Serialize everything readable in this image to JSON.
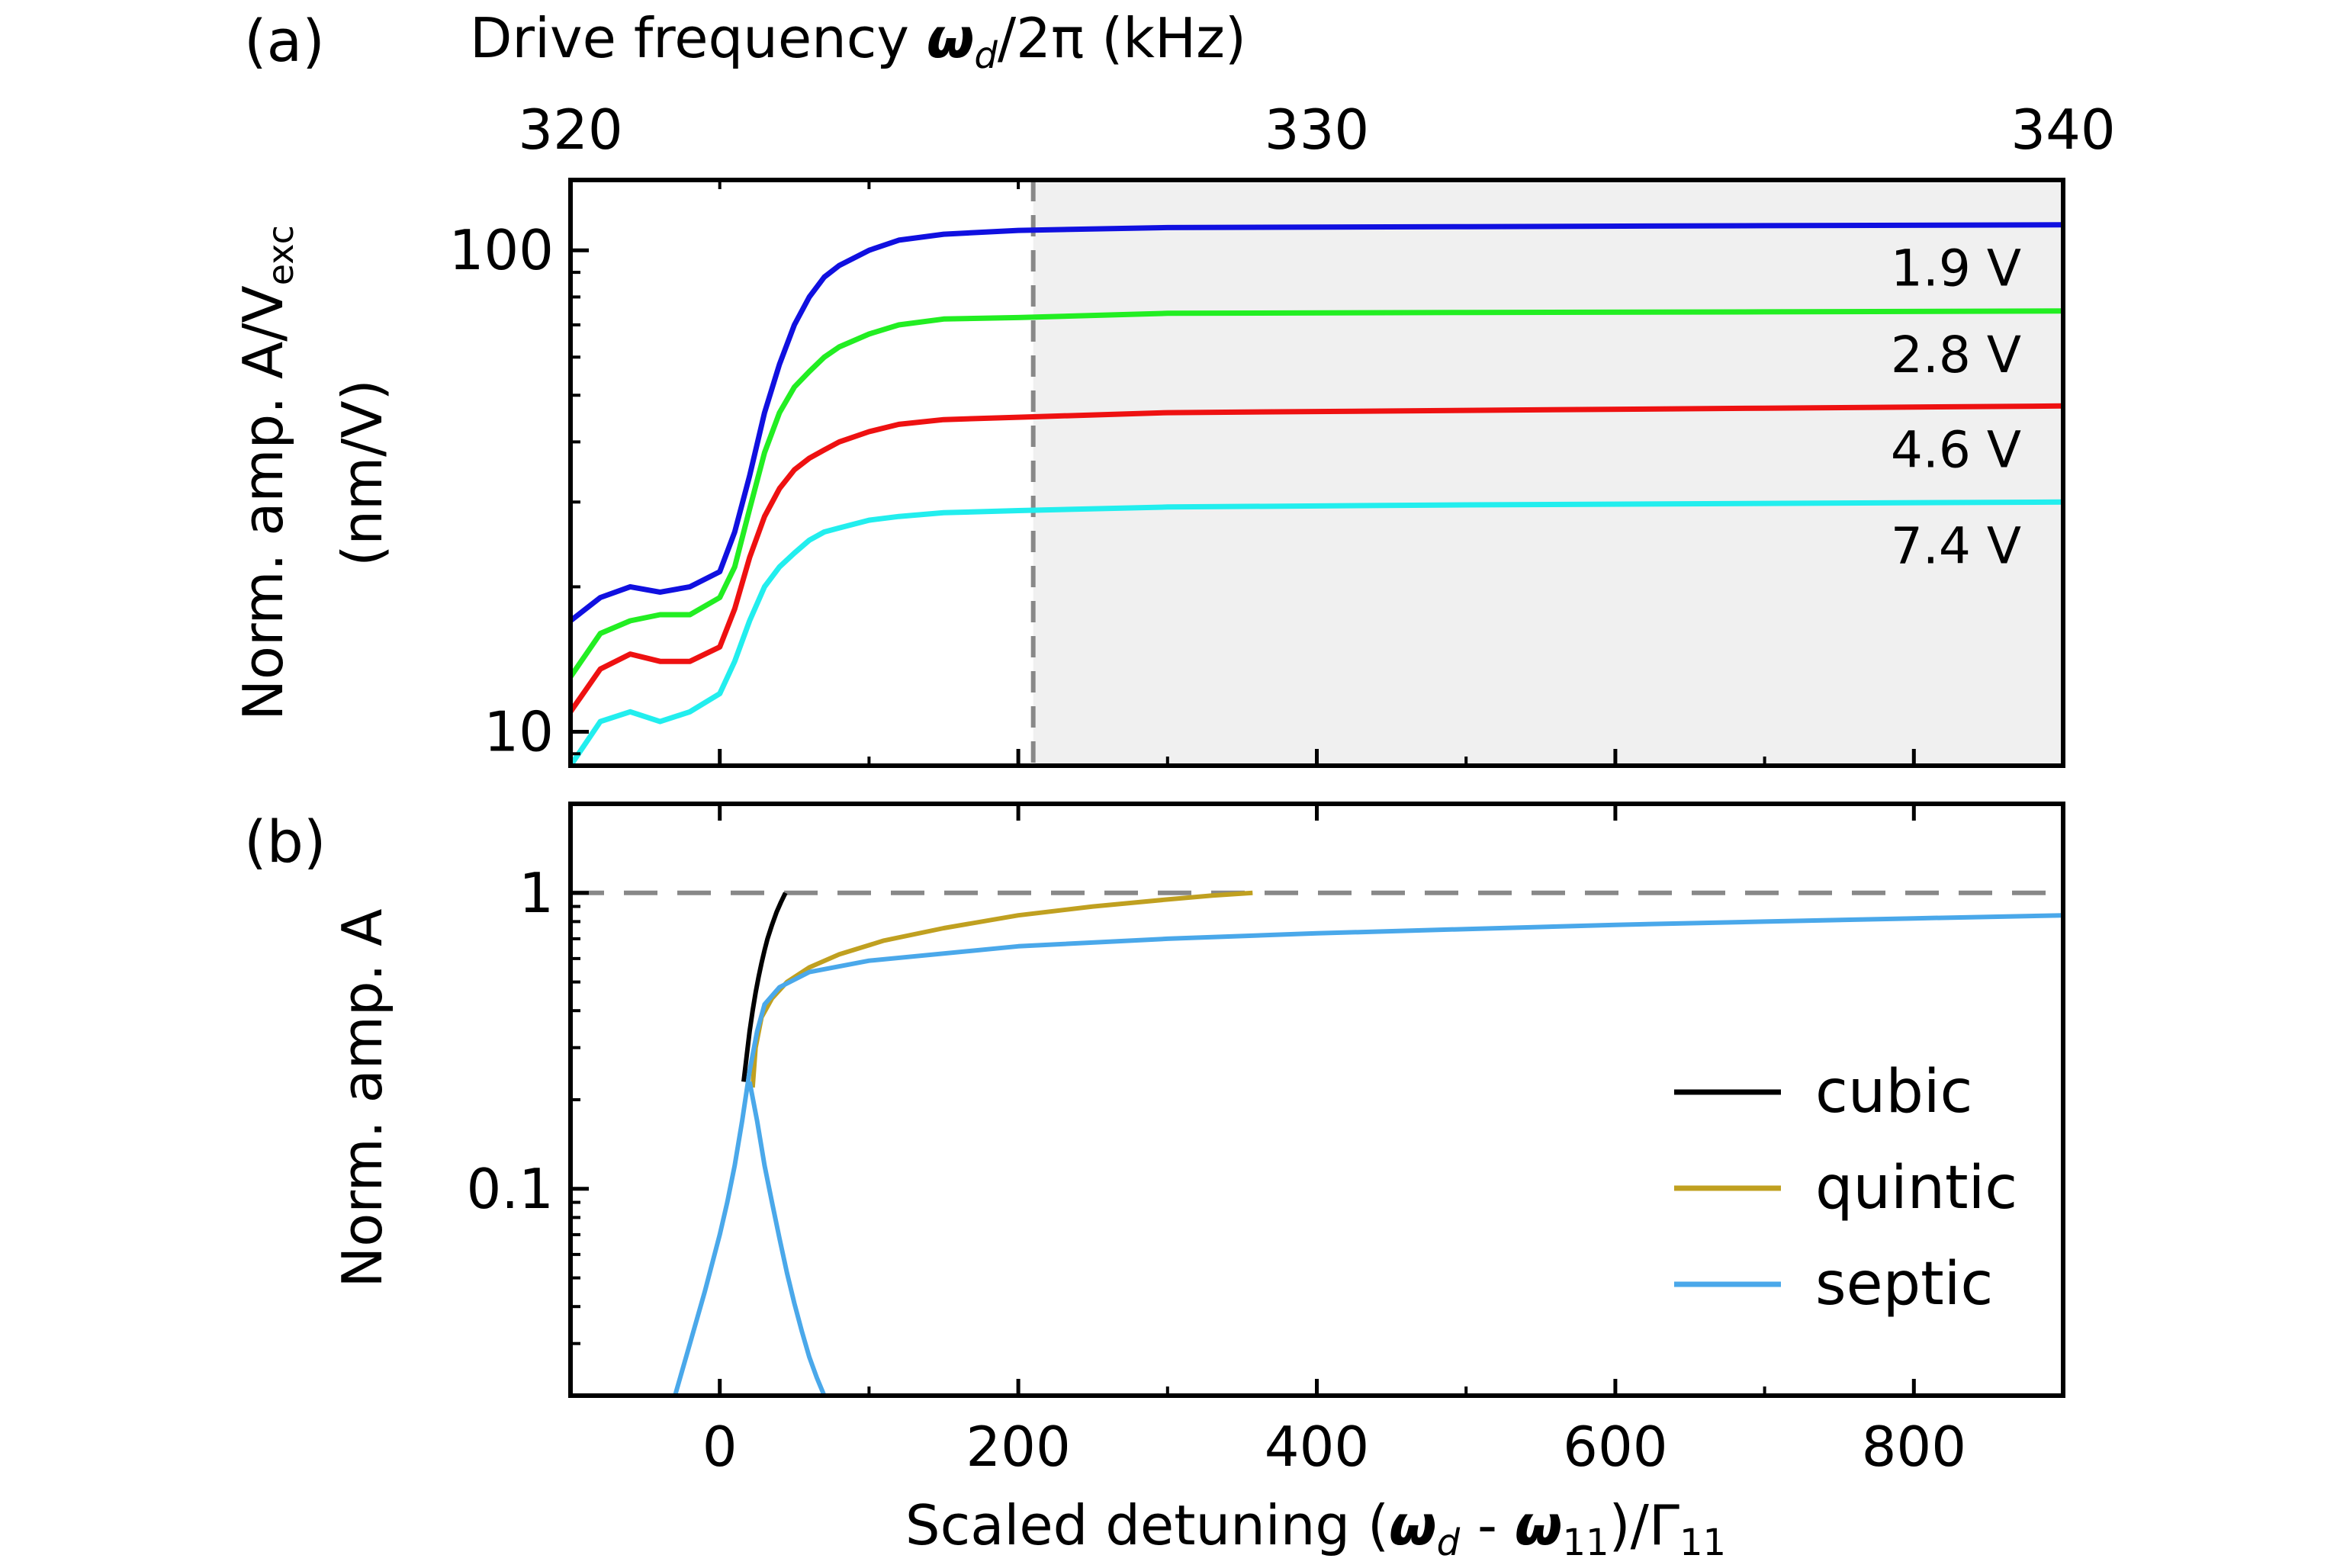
{
  "chart_data": [
    {
      "type": "line",
      "panel_label": "(a)",
      "title": "",
      "top_xlabel_main": "Drive frequency ",
      "top_xlabel_omega": "ω",
      "top_xlabel_d": "d",
      "top_xlabel_tail": "/2π (kHz)",
      "top_xticks": [
        "320",
        "330",
        "340"
      ],
      "top_xlim": [
        320,
        340
      ],
      "ylabel_line1": "Norm. amp. A/V",
      "ylabel_sub": "exc",
      "ylabel_line2": "(nm/V)",
      "yscale": "log",
      "ylim": [
        8.5,
        140
      ],
      "yticks": [
        "10",
        "100"
      ],
      "xlim": [
        -100,
        900
      ],
      "shaded_region_x": [
        210,
        900
      ],
      "dashed_vline_x": 210,
      "colors": {
        "shade": "#f0f0f0",
        "dashed": "#888888"
      },
      "series": [
        {
          "label": "1.9 V",
          "color": "#1010e0",
          "x": [
            -100,
            -80,
            -60,
            -40,
            -20,
            0,
            10,
            20,
            30,
            40,
            50,
            60,
            70,
            80,
            100,
            120,
            150,
            200,
            300,
            500,
            700,
            900
          ],
          "y": [
            17,
            19,
            20,
            19.5,
            20,
            21.5,
            26,
            34,
            46,
            58,
            70,
            80,
            88,
            93,
            100,
            105,
            108,
            110,
            111.5,
            112,
            112.5,
            113
          ]
        },
        {
          "label": "2.8 V",
          "color": "#22ee22",
          "x": [
            -100,
            -80,
            -60,
            -40,
            -20,
            0,
            10,
            20,
            30,
            40,
            50,
            60,
            70,
            80,
            100,
            120,
            150,
            200,
            300,
            500,
            700,
            900
          ],
          "y": [
            13,
            16,
            17,
            17.5,
            17.5,
            19,
            22,
            29,
            38,
            46,
            52,
            56,
            60,
            63,
            67,
            70,
            72,
            72.5,
            74,
            74.3,
            74.5,
            74.8
          ]
        },
        {
          "label": "4.6 V",
          "color": "#ee1111",
          "x": [
            -100,
            -80,
            -60,
            -40,
            -20,
            0,
            10,
            20,
            30,
            40,
            50,
            60,
            70,
            80,
            100,
            120,
            150,
            200,
            300,
            500,
            700,
            900
          ],
          "y": [
            11,
            13.5,
            14.5,
            14,
            14,
            15,
            18,
            23,
            28,
            32,
            35,
            37,
            38.5,
            40,
            42,
            43.5,
            44.5,
            45,
            46,
            46.5,
            47,
            47.5
          ]
        },
        {
          "label": "7.4 V",
          "color": "#22eeee",
          "x": [
            -100,
            -80,
            -60,
            -40,
            -20,
            0,
            10,
            20,
            30,
            40,
            50,
            60,
            70,
            80,
            100,
            120,
            150,
            200,
            300,
            500,
            700,
            900
          ],
          "y": [
            8.5,
            10.5,
            11,
            10.5,
            11,
            12,
            14,
            17,
            20,
            22,
            23.5,
            25,
            26,
            26.5,
            27.5,
            28,
            28.5,
            28.8,
            29.3,
            29.6,
            29.8,
            30
          ]
        }
      ]
    },
    {
      "type": "line",
      "panel_label": "(b)",
      "title": "",
      "xlabel_main": "Scaled detuning (",
      "xlabel_omega1": "ω",
      "xlabel_d": "d",
      "xlabel_minus": " - ",
      "xlabel_omega2": "ω",
      "xlabel_11a": "11",
      "xlabel_tail": ")/Γ",
      "xlabel_11b": "11",
      "xticks": [
        "0",
        "200",
        "400",
        "600",
        "800"
      ],
      "xlim": [
        -100,
        900
      ],
      "ylabel": "Norm. amp. A",
      "yscale": "log",
      "ylim": [
        0.02,
        2.0
      ],
      "yticks": [
        "0.1",
        "1"
      ],
      "dashed_hline_y": 1,
      "legend_position": "right",
      "series": [
        {
          "name": "cubic",
          "color": "#000000",
          "x": [
            16,
            18,
            20,
            22,
            24,
            26,
            28,
            30,
            32,
            35,
            38,
            41,
            44
          ],
          "y": [
            0.23,
            0.28,
            0.34,
            0.4,
            0.46,
            0.52,
            0.58,
            0.64,
            0.7,
            0.78,
            0.86,
            0.93,
            1.0
          ]
        },
        {
          "name": "quintic",
          "color": "#c0a020",
          "x": [
            22,
            24,
            28,
            35,
            45,
            60,
            80,
            110,
            150,
            200,
            250,
            300,
            330,
            357
          ],
          "y": [
            0.22,
            0.3,
            0.38,
            0.44,
            0.5,
            0.56,
            0.62,
            0.69,
            0.76,
            0.84,
            0.9,
            0.95,
            0.98,
            1.0
          ]
        },
        {
          "name": "septic",
          "color": "#4aa8ea",
          "x": [
            -30,
            -20,
            -10,
            0,
            5,
            10,
            15,
            20,
            25,
            30,
            40,
            60,
            100,
            200,
            300,
            400,
            500,
            600,
            700,
            800,
            900
          ],
          "y": [
            0.02,
            0.03,
            0.045,
            0.07,
            0.09,
            0.12,
            0.17,
            0.25,
            0.34,
            0.42,
            0.48,
            0.54,
            0.59,
            0.66,
            0.7,
            0.73,
            0.755,
            0.78,
            0.8,
            0.82,
            0.84
          ]
        },
        {
          "name": "",
          "color": "#4aa8ea",
          "x": [
            20,
            25,
            30,
            35,
            40,
            45,
            50,
            55,
            60,
            65,
            70
          ],
          "y": [
            0.23,
            0.17,
            0.12,
            0.09,
            0.068,
            0.052,
            0.041,
            0.033,
            0.027,
            0.023,
            0.02
          ]
        }
      ],
      "legend_order": [
        "cubic",
        "quintic",
        "septic"
      ]
    }
  ]
}
